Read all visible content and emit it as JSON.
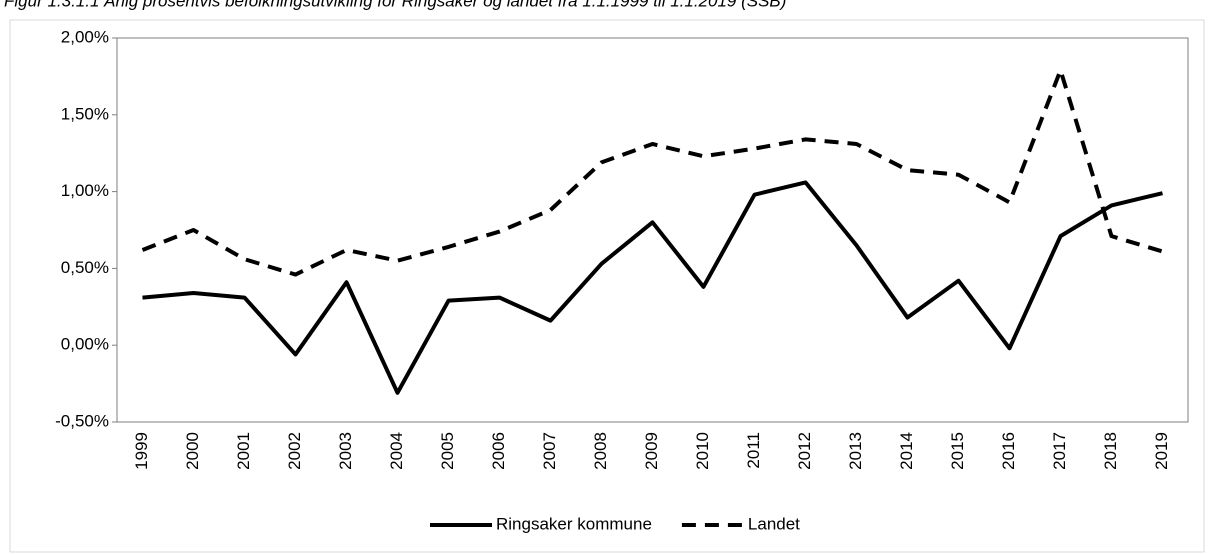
{
  "chart_data": {
    "type": "line",
    "title": "Figur 1.3.1.1 Årlig prosentvis befolkningsutvikling for Ringsaker og landet fra 1.1.1999 til 1.1.2019 (SSB)",
    "categories": [
      "1999",
      "2000",
      "2001",
      "2002",
      "2003",
      "2004",
      "2005",
      "2006",
      "2007",
      "2008",
      "2009",
      "2010",
      "2011",
      "2012",
      "2013",
      "2014",
      "2015",
      "2016",
      "2017",
      "2018",
      "2019"
    ],
    "series": [
      {
        "name": "Ringsaker kommune",
        "color": "#000000",
        "dash": false,
        "values": [
          0.31,
          0.34,
          0.31,
          -0.06,
          0.41,
          -0.31,
          0.29,
          0.31,
          0.16,
          0.53,
          0.8,
          0.38,
          0.98,
          1.06,
          0.65,
          0.18,
          0.42,
          -0.02,
          0.71,
          0.91,
          0.99
        ]
      },
      {
        "name": "Landet",
        "color": "#000000",
        "dash": true,
        "values": [
          0.62,
          0.75,
          0.56,
          0.46,
          0.62,
          0.55,
          0.64,
          0.74,
          0.88,
          1.19,
          1.31,
          1.23,
          1.28,
          1.34,
          1.31,
          1.14,
          1.11,
          0.93,
          1.79,
          0.71,
          0.61
        ]
      }
    ],
    "ylim": [
      -0.5,
      2.0
    ],
    "yticks": [
      {
        "value": -0.5,
        "label": "-0,50%"
      },
      {
        "value": 0,
        "label": "0,00%"
      },
      {
        "value": 0.5,
        "label": "0,50%"
      },
      {
        "value": 1.0,
        "label": "1,00%"
      },
      {
        "value": 1.5,
        "label": "1,50%"
      },
      {
        "value": 2.0,
        "label": "2,00%"
      }
    ],
    "grid": false,
    "legend": "bottom"
  }
}
